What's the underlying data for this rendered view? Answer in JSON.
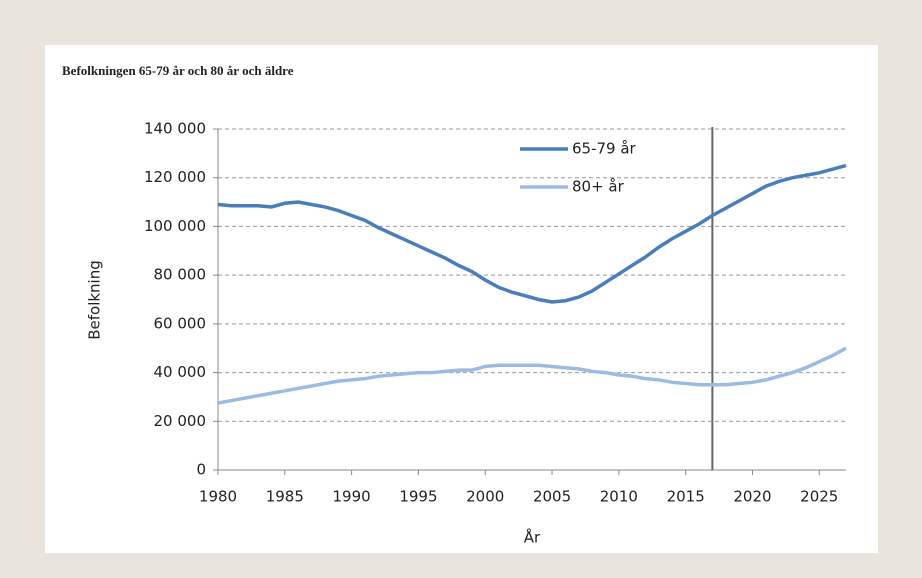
{
  "chart_data": {
    "type": "line",
    "title": "Befolkningen 65-79 år och 80 år och äldre",
    "x_label": "År",
    "y_label": "Befolkning",
    "x": [
      1980,
      1981,
      1982,
      1983,
      1984,
      1985,
      1986,
      1987,
      1988,
      1989,
      1990,
      1991,
      1992,
      1993,
      1994,
      1995,
      1996,
      1997,
      1998,
      1999,
      2000,
      2001,
      2002,
      2003,
      2004,
      2005,
      2006,
      2007,
      2008,
      2009,
      2010,
      2011,
      2012,
      2013,
      2014,
      2015,
      2016,
      2017,
      2018,
      2019,
      2020,
      2021,
      2022,
      2023,
      2024,
      2025,
      2026,
      2027
    ],
    "series": [
      {
        "name": "65-79 år",
        "color": "#4a7ebb",
        "values": [
          109000,
          108500,
          108500,
          108500,
          108000,
          109500,
          110000,
          109000,
          108000,
          106500,
          104500,
          102500,
          99500,
          97000,
          94500,
          92000,
          89500,
          87000,
          84000,
          81500,
          78000,
          75000,
          73000,
          71500,
          70000,
          69000,
          69500,
          71000,
          73500,
          77000,
          80500,
          84000,
          87500,
          91500,
          95000,
          98000,
          101000,
          104500,
          107500,
          110500,
          113500,
          116500,
          118500,
          120000,
          121000,
          122000,
          123500,
          125000
        ]
      },
      {
        "name": "80+ år",
        "color": "#9dbbe2",
        "values": [
          27500,
          28500,
          29500,
          30500,
          31500,
          32500,
          33500,
          34500,
          35500,
          36500,
          37000,
          37500,
          38500,
          39000,
          39500,
          40000,
          40000,
          40500,
          41000,
          41000,
          42500,
          43000,
          43000,
          43000,
          43000,
          42500,
          42000,
          41500,
          40500,
          40000,
          39000,
          38500,
          37500,
          37000,
          36000,
          35500,
          35000,
          35000,
          35000,
          35500,
          36000,
          37000,
          38500,
          40000,
          42000,
          44500,
          47000,
          50000
        ]
      }
    ],
    "xlim": [
      1980,
      2027
    ],
    "xticks": [
      1980,
      1985,
      1990,
      1995,
      2000,
      2005,
      2010,
      2015,
      2020,
      2025
    ],
    "ylim": [
      0,
      140000
    ],
    "yticks": [
      {
        "value": 0,
        "label": "0"
      },
      {
        "value": 20000,
        "label": "20 000"
      },
      {
        "value": 40000,
        "label": "40 000"
      },
      {
        "value": 60000,
        "label": "60 000"
      },
      {
        "value": 80000,
        "label": "80 000"
      },
      {
        "value": 100000,
        "label": "100 000"
      },
      {
        "value": 120000,
        "label": "120 000"
      },
      {
        "value": 140000,
        "label": "140 000"
      }
    ],
    "grid": true,
    "vertical_line": 2017
  }
}
